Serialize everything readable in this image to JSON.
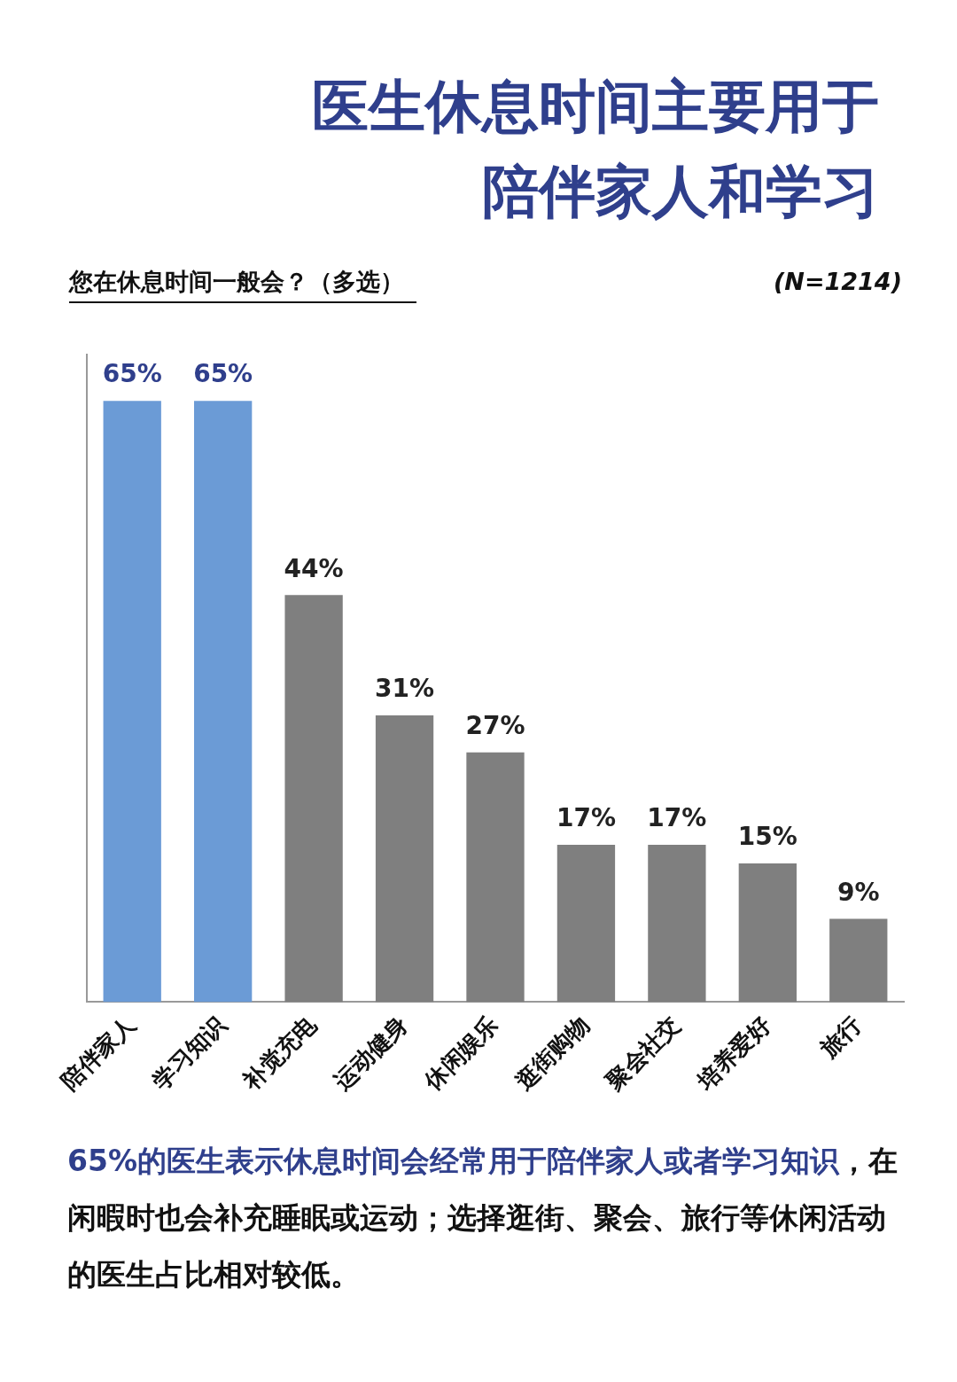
{
  "chart_data": {
    "type": "bar",
    "title": "医生休息时间主要用于陪伴家人和学习",
    "subtitle": "您在休息时间一般会？（多选）",
    "annotations": [
      "(N=1214)",
      "65%的医生表示休息时间会经常用于陪伴家人或者学习知识",
      "，在闲暇时也会补充睡眠或运动；选择逛街、聚会、旅行等休闲活动的医生占比相对较低。"
    ],
    "categories": [
      "陪伴家人",
      "学习知识",
      "补觉充电",
      "运动健身",
      "休闲娱乐",
      "逛街购物",
      "聚会社交",
      "培养爱好",
      "旅行"
    ],
    "values": [
      65,
      65,
      44,
      31,
      27,
      17,
      17,
      15,
      9
    ],
    "colors": [
      "#6b9bd6",
      "#6b9bd6",
      "#7f7f7f",
      "#7f7f7f",
      "#7f7f7f",
      "#7f7f7f",
      "#7f7f7f",
      "#7f7f7f",
      "#7f7f7f"
    ],
    "value_labels": [
      "65%",
      "65%",
      "44%",
      "31%",
      "27%",
      "17%",
      "17%",
      "15%",
      "9%"
    ]
  }
}
